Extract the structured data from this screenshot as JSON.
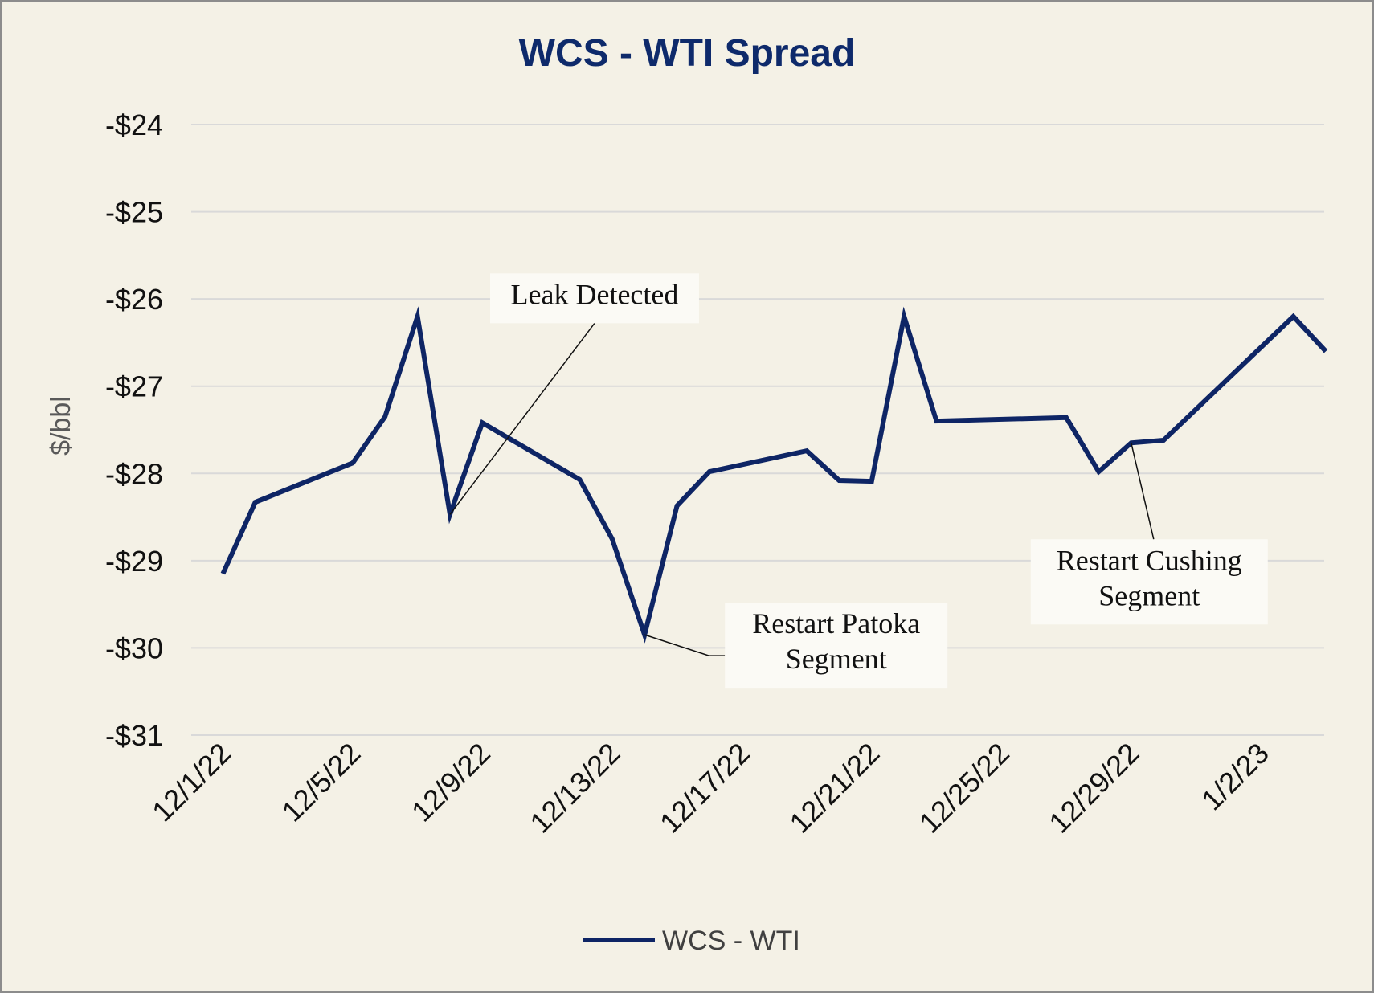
{
  "colors": {
    "background": "#F4F1E6",
    "border": "#8C8C8C",
    "title": "#0E2A6B",
    "series": "#0E2565",
    "grid": "#D9D9D9",
    "annotation_box": "#FBFAF5"
  },
  "chart_data": {
    "type": "line",
    "title": "WCS - WTI Spread",
    "xlabel": "",
    "ylabel": "$/bbl",
    "ylim": [
      -31,
      -24
    ],
    "yticks": [
      -24,
      -25,
      -26,
      -27,
      -28,
      -29,
      -30,
      -31
    ],
    "ytick_labels": [
      "-$24",
      "-$25",
      "-$26",
      "-$27",
      "-$28",
      "-$29",
      "-$30",
      "-$31"
    ],
    "xticks": [
      "2022-12-01",
      "2022-12-05",
      "2022-12-09",
      "2022-12-13",
      "2022-12-17",
      "2022-12-21",
      "2022-12-25",
      "2022-12-29",
      "2023-01-02"
    ],
    "xtick_labels": [
      "12/1/22",
      "12/5/22",
      "12/9/22",
      "12/13/22",
      "12/17/22",
      "12/21/22",
      "12/25/22",
      "12/29/22",
      "1/2/23"
    ],
    "xlim": [
      "2022-11-30",
      "2023-01-04"
    ],
    "grid": true,
    "legend_position": "bottom",
    "series": [
      {
        "name": "WCS - WTI",
        "points": [
          {
            "x": "2022-12-01",
            "y": -29.15
          },
          {
            "x": "2022-12-02",
            "y": -28.33
          },
          {
            "x": "2022-12-05",
            "y": -27.88
          },
          {
            "x": "2022-12-06",
            "y": -27.35
          },
          {
            "x": "2022-12-07",
            "y": -26.2
          },
          {
            "x": "2022-12-08",
            "y": -28.47
          },
          {
            "x": "2022-12-09",
            "y": -27.42
          },
          {
            "x": "2022-12-12",
            "y": -28.07
          },
          {
            "x": "2022-12-13",
            "y": -28.75
          },
          {
            "x": "2022-12-14",
            "y": -29.85
          },
          {
            "x": "2022-12-15",
            "y": -28.37
          },
          {
            "x": "2022-12-16",
            "y": -27.98
          },
          {
            "x": "2022-12-19",
            "y": -27.74
          },
          {
            "x": "2022-12-20",
            "y": -28.08
          },
          {
            "x": "2022-12-21",
            "y": -28.09
          },
          {
            "x": "2022-12-22",
            "y": -26.2
          },
          {
            "x": "2022-12-23",
            "y": -27.4
          },
          {
            "x": "2022-12-27",
            "y": -27.36
          },
          {
            "x": "2022-12-28",
            "y": -27.98
          },
          {
            "x": "2022-12-29",
            "y": -27.65
          },
          {
            "x": "2022-12-30",
            "y": -27.62
          },
          {
            "x": "2023-01-03",
            "y": -26.2
          },
          {
            "x": "2023-01-04",
            "y": -26.6
          }
        ]
      }
    ],
    "annotations": [
      {
        "lines": [
          "Leak Detected"
        ],
        "x": "2022-12-08",
        "y": -28.47,
        "label_position": "above-right"
      },
      {
        "lines": [
          "Restart Patoka",
          "Segment"
        ],
        "x": "2022-12-14",
        "y": -29.85,
        "label_position": "below-right"
      },
      {
        "lines": [
          "Restart Cushing",
          "Segment"
        ],
        "x": "2022-12-29",
        "y": -27.65,
        "label_position": "below"
      }
    ]
  }
}
